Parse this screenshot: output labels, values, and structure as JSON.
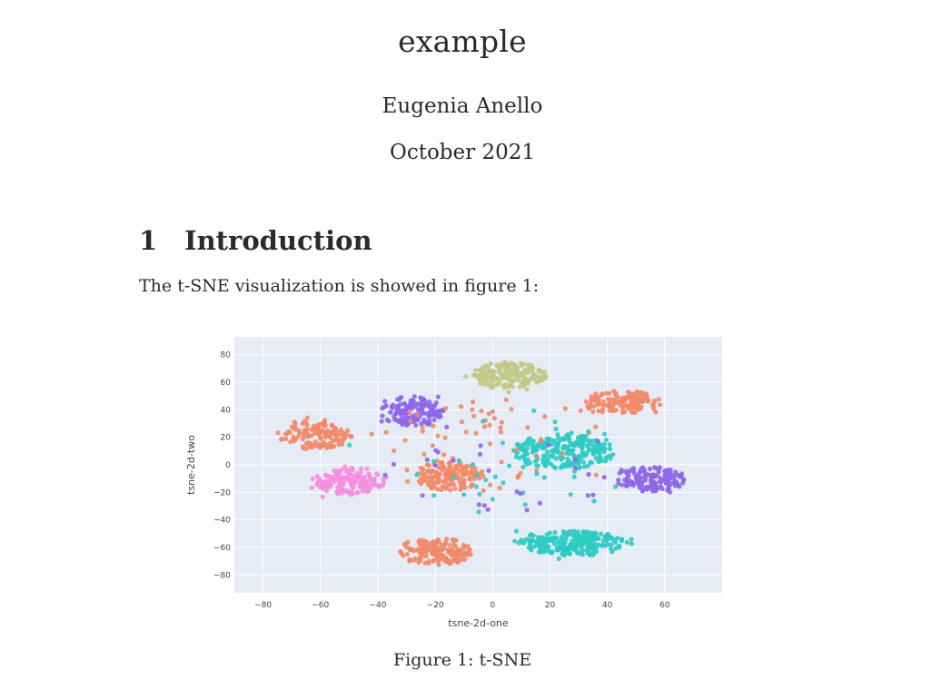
{
  "document": {
    "title": "example",
    "author": "Eugenia Anello",
    "date": "October 2021",
    "section": {
      "number": "1",
      "heading": "Introduction"
    },
    "paragraph": "The t-SNE visualization is showed in figure 1:",
    "caption": "Figure 1: t-SNE"
  },
  "chart_data": {
    "type": "scatter",
    "title": "",
    "xlabel": "tsne-2d-one",
    "ylabel": "tsne-2d-two",
    "xlim": [
      -90,
      80
    ],
    "ylim": [
      -93,
      93
    ],
    "xticks": [
      -80,
      -60,
      -40,
      -20,
      0,
      20,
      40,
      60
    ],
    "yticks": [
      -80,
      -60,
      -40,
      -20,
      0,
      20,
      40,
      60,
      80
    ],
    "grid": true,
    "plot_background": "#e5ecf6",
    "clusters": [
      {
        "color": "#c2c985",
        "center": [
          6,
          65
        ],
        "spread": [
          13,
          10
        ],
        "count": 170
      },
      {
        "color": "#8e67ea",
        "center": [
          -28,
          38
        ],
        "spread": [
          11,
          12
        ],
        "count": 140
      },
      {
        "color": "#f28a68",
        "center": [
          -62,
          22
        ],
        "spread": [
          13,
          11
        ],
        "count": 130
      },
      {
        "color": "#f58fe0",
        "center": [
          -50,
          -12
        ],
        "spread": [
          13,
          10
        ],
        "count": 170
      },
      {
        "color": "#f28a68",
        "center": [
          -15,
          -8
        ],
        "spread": [
          12,
          11
        ],
        "count": 150
      },
      {
        "color": "#2ecbc2",
        "center": [
          25,
          10
        ],
        "spread": [
          18,
          13
        ],
        "count": 230
      },
      {
        "color": "#f28a68",
        "center": [
          45,
          45
        ],
        "spread": [
          14,
          9
        ],
        "count": 150
      },
      {
        "color": "#8e67ea",
        "center": [
          55,
          -10
        ],
        "spread": [
          12,
          10
        ],
        "count": 150
      },
      {
        "color": "#f28a68",
        "center": [
          -20,
          -63
        ],
        "spread": [
          13,
          10
        ],
        "count": 160
      },
      {
        "color": "#2ecbc2",
        "center": [
          28,
          -57
        ],
        "spread": [
          19,
          9
        ],
        "count": 230
      },
      {
        "color": "#f28a68",
        "center": [
          0,
          15
        ],
        "spread": [
          40,
          35
        ],
        "count": 60
      },
      {
        "color": "#2ecbc2",
        "center": [
          10,
          0
        ],
        "spread": [
          40,
          35
        ],
        "count": 40
      },
      {
        "color": "#8e67ea",
        "center": [
          0,
          0
        ],
        "spread": [
          45,
          35
        ],
        "count": 25
      }
    ]
  }
}
